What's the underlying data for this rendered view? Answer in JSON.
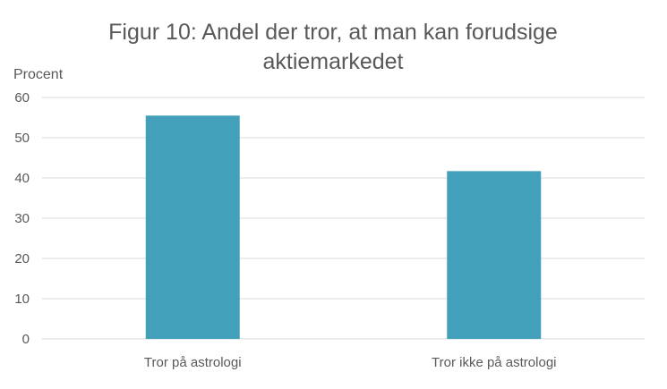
{
  "chart_data": {
    "type": "bar",
    "title_lines": [
      "Figur 10: Andel der tror, at man kan forudsige",
      "aktiemarkedet"
    ],
    "ylabel": "Procent",
    "xlabel": "",
    "categories": [
      "Tror på astrologi",
      "Tror ikke på astrologi"
    ],
    "values": [
      55.5,
      41.7
    ],
    "ylim": [
      0,
      60
    ],
    "yticks": [
      0,
      10,
      20,
      30,
      40,
      50,
      60
    ],
    "grid": true,
    "legend": "none",
    "bar_color": "#43A0BB",
    "grid_color": "#D9D9D9",
    "text_color": "#595959"
  }
}
